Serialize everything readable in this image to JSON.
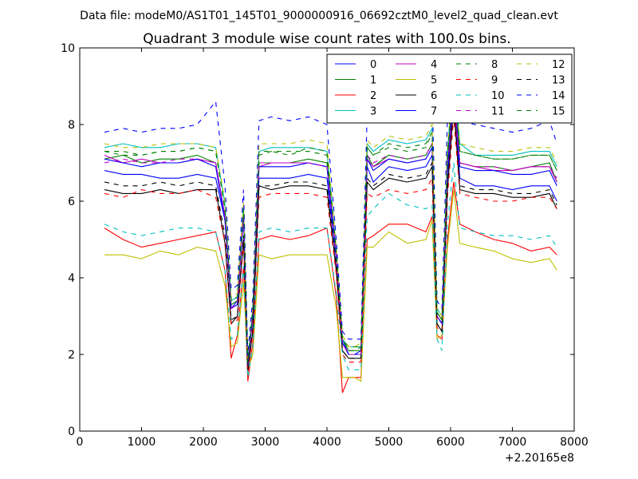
{
  "suptitle": "Data file: modeM0/AS1T01_145T01_9000000916_06692cztM0_level2_quad_clean.evt",
  "chart_data": {
    "type": "line",
    "title": "Quadrant 3 module wise count rates with 100.0s bins.",
    "xlabel": "",
    "ylabel": "",
    "x_offset_label": "+2.20165e8",
    "xlim": [
      0,
      8000
    ],
    "ylim": [
      0,
      10
    ],
    "xticks": [
      0,
      1000,
      2000,
      3000,
      4000,
      5000,
      6000,
      7000,
      8000
    ],
    "yticks": [
      0,
      2,
      4,
      6,
      8,
      10
    ],
    "grid": false,
    "legend_position": "top-right",
    "legend_columns": 4,
    "x": [
      400,
      700,
      1000,
      1300,
      1600,
      1900,
      2200,
      2350,
      2450,
      2550,
      2650,
      2720,
      2800,
      2900,
      3100,
      3400,
      3700,
      4000,
      4150,
      4250,
      4350,
      4450,
      4550,
      4650,
      4750,
      5000,
      5300,
      5600,
      5700,
      5780,
      5860,
      5950,
      6050,
      6150,
      6400,
      6700,
      7000,
      7300,
      7600,
      7720
    ],
    "series": [
      {
        "name": "0",
        "color": "#0000ff",
        "style": "solid",
        "values": [
          6.8,
          6.7,
          6.7,
          6.6,
          6.6,
          6.7,
          6.6,
          5.5,
          3.2,
          3.4,
          5.6,
          1.7,
          3.0,
          6.6,
          6.6,
          6.6,
          6.7,
          6.6,
          4.5,
          2.4,
          2.0,
          2.0,
          2.1,
          6.9,
          6.5,
          6.9,
          6.8,
          6.9,
          7.2,
          3.0,
          2.8,
          6.6,
          8.8,
          6.6,
          6.4,
          6.4,
          6.3,
          6.4,
          6.4,
          6.0
        ]
      },
      {
        "name": "1",
        "color": "#008000",
        "style": "solid",
        "values": [
          7.1,
          7.2,
          7.0,
          7.1,
          7.1,
          7.2,
          7.0,
          5.6,
          3.3,
          3.4,
          5.7,
          1.8,
          3.1,
          7.0,
          7.0,
          7.0,
          7.1,
          7.0,
          4.6,
          2.4,
          2.1,
          2.1,
          2.1,
          7.2,
          6.9,
          7.2,
          7.1,
          7.2,
          7.5,
          3.1,
          2.9,
          7.0,
          9.0,
          7.0,
          6.9,
          6.9,
          6.8,
          6.9,
          7.0,
          6.5
        ]
      },
      {
        "name": "2",
        "color": "#ff0000",
        "style": "solid",
        "values": [
          5.3,
          5.0,
          4.8,
          4.9,
          5.0,
          5.1,
          5.2,
          4.2,
          1.9,
          2.5,
          4.3,
          1.3,
          2.3,
          5.0,
          5.1,
          5.0,
          5.1,
          5.3,
          3.5,
          1.0,
          1.4,
          1.4,
          1.4,
          5.0,
          5.1,
          5.4,
          5.4,
          5.2,
          5.6,
          2.5,
          2.4,
          5.0,
          6.5,
          5.4,
          5.2,
          5.0,
          4.9,
          4.7,
          4.8,
          4.6
        ]
      },
      {
        "name": "3",
        "color": "#00bfbf",
        "style": "solid",
        "values": [
          7.4,
          7.5,
          7.4,
          7.4,
          7.5,
          7.5,
          7.4,
          5.9,
          3.4,
          3.5,
          5.9,
          1.8,
          3.2,
          7.3,
          7.4,
          7.4,
          7.4,
          7.3,
          4.7,
          2.4,
          2.2,
          2.2,
          2.2,
          7.5,
          7.3,
          7.6,
          7.5,
          7.6,
          7.9,
          3.2,
          3.0,
          7.3,
          9.5,
          7.5,
          7.2,
          7.2,
          7.2,
          7.3,
          7.3,
          6.9
        ]
      },
      {
        "name": "4",
        "color": "#bf00bf",
        "style": "solid",
        "values": [
          7.2,
          7.0,
          7.1,
          7.0,
          7.0,
          7.1,
          7.0,
          5.6,
          3.2,
          3.3,
          5.6,
          1.7,
          3.0,
          6.9,
          7.0,
          7.0,
          7.0,
          6.9,
          4.6,
          2.3,
          2.0,
          2.0,
          2.0,
          7.1,
          6.9,
          7.1,
          7.0,
          7.1,
          7.4,
          3.0,
          2.8,
          6.9,
          8.5,
          7.0,
          6.9,
          6.8,
          6.8,
          6.9,
          6.9,
          6.5
        ]
      },
      {
        "name": "5",
        "color": "#bfbf00",
        "style": "solid",
        "values": [
          4.6,
          4.6,
          4.5,
          4.7,
          4.6,
          4.8,
          4.7,
          3.8,
          2.2,
          2.3,
          3.9,
          1.6,
          2.0,
          4.6,
          4.5,
          4.6,
          4.6,
          4.6,
          3.2,
          1.4,
          1.4,
          1.4,
          1.3,
          4.8,
          4.8,
          5.2,
          4.9,
          5.0,
          5.5,
          2.4,
          2.5,
          4.8,
          6.3,
          4.9,
          4.8,
          4.7,
          4.5,
          4.4,
          4.5,
          4.2
        ]
      },
      {
        "name": "6",
        "color": "#000000",
        "style": "solid",
        "values": [
          6.3,
          6.2,
          6.2,
          6.3,
          6.2,
          6.3,
          6.3,
          4.9,
          2.8,
          3.0,
          5.0,
          1.6,
          2.6,
          6.4,
          6.3,
          6.4,
          6.4,
          6.3,
          4.2,
          2.1,
          1.9,
          1.9,
          1.9,
          6.5,
          6.3,
          6.6,
          6.5,
          6.6,
          6.9,
          2.8,
          2.6,
          6.3,
          8.5,
          6.3,
          6.2,
          6.2,
          6.1,
          6.1,
          6.2,
          5.8
        ]
      },
      {
        "name": "7",
        "color": "#0000ff",
        "style": "solid",
        "values": [
          7.1,
          7.0,
          6.9,
          7.0,
          7.0,
          7.1,
          6.9,
          5.5,
          3.2,
          3.3,
          5.6,
          1.7,
          3.0,
          6.9,
          6.9,
          6.9,
          7.0,
          6.9,
          4.5,
          2.3,
          2.0,
          2.0,
          2.0,
          7.1,
          6.8,
          7.1,
          7.0,
          7.1,
          7.4,
          3.0,
          2.8,
          6.8,
          9.2,
          6.9,
          6.8,
          6.8,
          6.7,
          6.7,
          6.8,
          6.4
        ]
      },
      {
        "name": "8",
        "color": "#008000",
        "style": "dashed",
        "values": [
          7.3,
          7.2,
          7.2,
          7.3,
          7.3,
          7.4,
          7.3,
          5.8,
          3.4,
          3.5,
          5.8,
          1.8,
          3.2,
          7.3,
          7.3,
          7.2,
          7.4,
          7.3,
          4.7,
          2.4,
          2.2,
          2.2,
          2.2,
          7.4,
          7.2,
          7.4,
          7.3,
          7.4,
          7.8,
          3.1,
          2.9,
          7.2,
          9.3,
          7.3,
          7.2,
          7.1,
          7.1,
          7.2,
          7.2,
          6.8
        ]
      },
      {
        "name": "9",
        "color": "#ff0000",
        "style": "dashed",
        "values": [
          6.2,
          6.1,
          6.3,
          6.2,
          6.2,
          6.3,
          6.1,
          4.9,
          2.8,
          2.9,
          4.9,
          1.5,
          2.6,
          6.1,
          6.2,
          6.2,
          6.2,
          6.1,
          4.1,
          2.0,
          1.8,
          1.8,
          1.8,
          6.2,
          6.1,
          6.3,
          6.2,
          6.3,
          6.6,
          2.7,
          2.6,
          6.1,
          8.2,
          6.2,
          6.1,
          6.0,
          6.0,
          6.1,
          6.1,
          5.8
        ]
      },
      {
        "name": "10",
        "color": "#00bfbf",
        "style": "dashed",
        "values": [
          5.4,
          5.2,
          5.1,
          5.2,
          5.3,
          5.3,
          5.2,
          4.2,
          2.4,
          2.5,
          4.3,
          1.4,
          2.2,
          5.2,
          5.3,
          5.2,
          5.3,
          5.3,
          3.6,
          2.0,
          1.6,
          1.6,
          1.6,
          5.6,
          5.8,
          6.2,
          5.9,
          5.8,
          5.9,
          2.4,
          2.1,
          5.4,
          7.0,
          5.3,
          5.2,
          5.1,
          5.1,
          5.0,
          5.1,
          4.8
        ]
      },
      {
        "name": "11",
        "color": "#bf00bf",
        "style": "dashed",
        "values": [
          7.0,
          7.1,
          7.0,
          7.0,
          7.1,
          7.1,
          7.0,
          5.6,
          3.2,
          3.3,
          5.6,
          1.7,
          3.0,
          7.0,
          7.0,
          7.0,
          7.0,
          6.9,
          4.6,
          2.3,
          2.0,
          2.0,
          2.0,
          7.2,
          7.0,
          7.2,
          7.1,
          7.2,
          7.5,
          3.0,
          2.8,
          6.9,
          8.8,
          7.0,
          6.9,
          6.9,
          6.8,
          6.9,
          6.9,
          6.6
        ]
      },
      {
        "name": "12",
        "color": "#bfbf00",
        "style": "dashed",
        "values": [
          7.5,
          7.4,
          7.4,
          7.5,
          7.5,
          7.5,
          7.4,
          6.0,
          3.5,
          3.6,
          6.0,
          1.9,
          3.3,
          7.5,
          7.5,
          7.5,
          7.6,
          7.5,
          4.8,
          2.5,
          2.2,
          2.2,
          2.3,
          7.6,
          7.4,
          7.7,
          7.6,
          7.7,
          8.0,
          3.2,
          3.0,
          7.4,
          9.3,
          7.5,
          7.4,
          7.3,
          7.3,
          7.4,
          7.4,
          7.0
        ]
      },
      {
        "name": "13",
        "color": "#000000",
        "style": "dashed",
        "values": [
          6.5,
          6.4,
          6.4,
          6.5,
          6.4,
          6.5,
          6.4,
          5.1,
          2.9,
          3.0,
          5.1,
          1.6,
          2.7,
          6.4,
          6.4,
          6.5,
          6.5,
          6.4,
          4.3,
          2.1,
          1.9,
          1.9,
          1.9,
          6.6,
          6.4,
          6.7,
          6.6,
          6.7,
          7.0,
          2.8,
          2.6,
          6.4,
          8.6,
          6.4,
          6.3,
          6.3,
          6.2,
          6.2,
          6.3,
          5.9
        ]
      },
      {
        "name": "14",
        "color": "#0000ff",
        "style": "dashed",
        "values": [
          7.8,
          7.9,
          7.8,
          7.9,
          7.9,
          8.0,
          8.6,
          6.4,
          3.7,
          3.8,
          6.3,
          2.0,
          3.5,
          8.1,
          8.2,
          8.1,
          8.2,
          8.0,
          5.0,
          2.6,
          2.4,
          2.4,
          2.4,
          8.3,
          8.1,
          8.4,
          8.3,
          8.4,
          8.9,
          3.4,
          3.2,
          8.2,
          9.6,
          8.1,
          8.0,
          7.9,
          7.8,
          7.9,
          8.1,
          7.5
        ]
      },
      {
        "name": "15",
        "color": "#008000",
        "style": "dashed",
        "values": [
          7.3,
          7.3,
          7.2,
          7.3,
          7.3,
          7.4,
          7.3,
          5.8,
          3.4,
          3.5,
          5.8,
          1.8,
          3.2,
          7.2,
          7.3,
          7.3,
          7.3,
          7.2,
          4.7,
          2.4,
          2.1,
          2.1,
          2.2,
          7.4,
          7.2,
          7.5,
          7.4,
          7.5,
          7.8,
          3.1,
          2.9,
          7.2,
          9.2,
          7.3,
          7.2,
          7.1,
          7.1,
          7.2,
          7.2,
          6.8
        ]
      }
    ]
  }
}
